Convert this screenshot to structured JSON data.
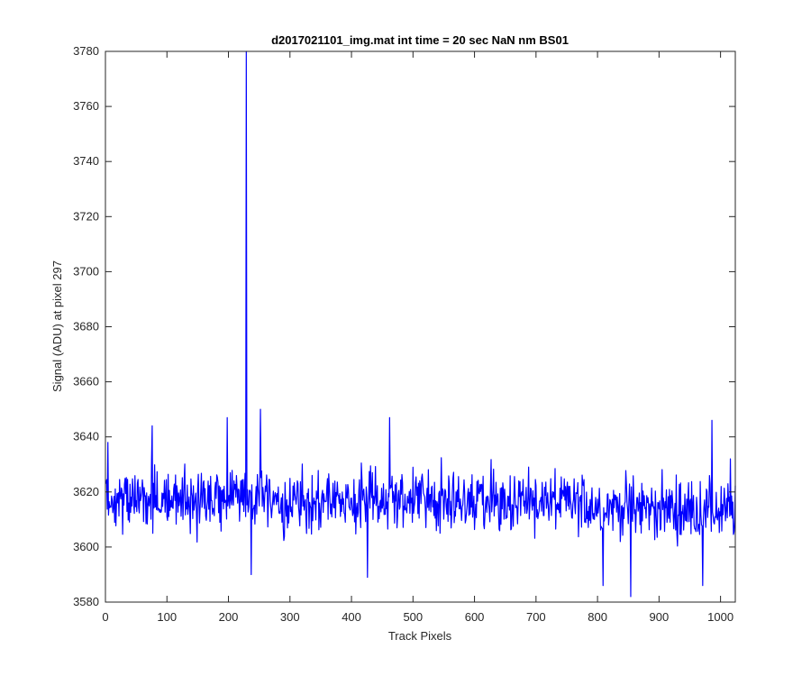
{
  "chart_data": {
    "type": "line",
    "title": "d2017021101_img.mat int time = 20 sec  NaN nm BS01",
    "xlabel": "Track Pixels",
    "ylabel": "Signal (ADU) at pixel 297",
    "xlim": [
      0,
      1024
    ],
    "ylim": [
      3580,
      3780
    ],
    "xticks": [
      0,
      100,
      200,
      300,
      400,
      500,
      600,
      700,
      800,
      900,
      1000
    ],
    "yticks": [
      3580,
      3600,
      3620,
      3640,
      3660,
      3680,
      3700,
      3720,
      3740,
      3760,
      3780
    ],
    "grid": false,
    "series": [
      {
        "color": "#0000ff",
        "baseline": 3617,
        "noise_amplitude": 9,
        "spike_x": 228,
        "spike_y": 3780,
        "notable_points": [
          {
            "x": 3,
            "y": 3638
          },
          {
            "x": 75,
            "y": 3644
          },
          {
            "x": 197,
            "y": 3647
          },
          {
            "x": 228,
            "y": 3780
          },
          {
            "x": 236,
            "y": 3590
          },
          {
            "x": 251,
            "y": 3650
          },
          {
            "x": 425,
            "y": 3589
          },
          {
            "x": 461,
            "y": 3647
          },
          {
            "x": 808,
            "y": 3586
          },
          {
            "x": 853,
            "y": 3582
          },
          {
            "x": 970,
            "y": 3586
          },
          {
            "x": 985,
            "y": 3646
          },
          {
            "x": 1015,
            "y": 3632
          }
        ]
      }
    ]
  }
}
